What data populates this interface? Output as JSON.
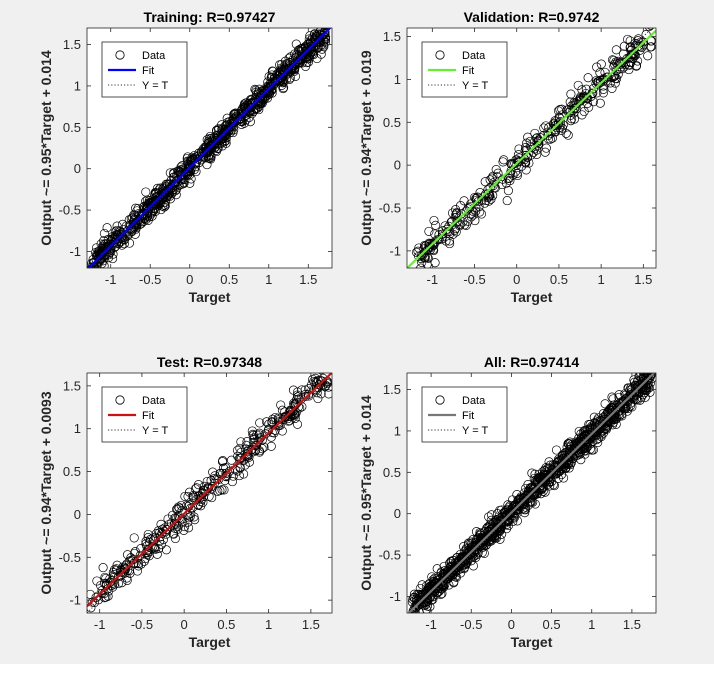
{
  "figure": {
    "background": "#f0f0f0",
    "axes_background": "#ffffff",
    "marker_color": "#000000"
  },
  "chart_data": [
    {
      "type": "scatter",
      "title": "Training: R=0.97427",
      "xlabel": "Target",
      "ylabel": "Output ~= 0.95*Target + 0.014",
      "xlim": [
        -1.3,
        1.8
      ],
      "ylim": [
        -1.2,
        1.7
      ],
      "xticks": [
        -1,
        -0.5,
        0,
        0.5,
        1,
        1.5
      ],
      "xtick_labels": [
        "-1",
        "-0.5",
        "0",
        "0.5",
        "1",
        "1.5"
      ],
      "yticks": [
        -1,
        -0.5,
        0,
        0.5,
        1,
        1.5
      ],
      "ytick_labels": [
        "-1",
        "-0.5",
        "0",
        "0.5",
        "1",
        "1.5"
      ],
      "fit": {
        "slope": 0.95,
        "intercept": 0.014,
        "color": "#0000ff"
      },
      "identity_line": {
        "slope": 1,
        "intercept": 0,
        "style": "dotted"
      },
      "legend": {
        "position": "top-left",
        "entries": [
          "Data",
          "Fit",
          "Y = T"
        ]
      },
      "scatter": {
        "n_points": 900,
        "x_range": [
          -1.25,
          1.72
        ],
        "noise": 0.075,
        "seed": 11
      }
    },
    {
      "type": "scatter",
      "title": "Validation: R=0.9742",
      "xlabel": "Target",
      "ylabel": "Output ~= 0.94*Target + 0.019",
      "xlim": [
        -1.3,
        1.65
      ],
      "ylim": [
        -1.2,
        1.6
      ],
      "xticks": [
        -1,
        -0.5,
        0,
        0.5,
        1,
        1.5
      ],
      "xtick_labels": [
        "-1",
        "-0.5",
        "0",
        "0.5",
        "1",
        "1.5"
      ],
      "yticks": [
        -1,
        -0.5,
        0,
        0.5,
        1,
        1.5
      ],
      "ytick_labels": [
        "-1",
        "-0.5",
        "0",
        "0.5",
        "1",
        "1.5"
      ],
      "fit": {
        "slope": 0.94,
        "intercept": 0.019,
        "color": "#66ee33"
      },
      "identity_line": {
        "slope": 1,
        "intercept": 0,
        "style": "dotted"
      },
      "legend": {
        "position": "top-left",
        "entries": [
          "Data",
          "Fit",
          "Y = T"
        ]
      },
      "scatter": {
        "n_points": 380,
        "x_range": [
          -1.2,
          1.6
        ],
        "noise": 0.09,
        "seed": 23
      }
    },
    {
      "type": "scatter",
      "title": "Test: R=0.97348",
      "xlabel": "Target",
      "ylabel": "Output ~= 0.94*Target + 0.0093",
      "xlim": [
        -1.15,
        1.75
      ],
      "ylim": [
        -1.15,
        1.65
      ],
      "xticks": [
        -1,
        -0.5,
        0,
        0.5,
        1,
        1.5
      ],
      "xtick_labels": [
        "-1",
        "-0.5",
        "0",
        "0.5",
        "1",
        "1.5"
      ],
      "yticks": [
        -1,
        -0.5,
        0,
        0.5,
        1,
        1.5
      ],
      "ytick_labels": [
        "-1",
        "-0.5",
        "0",
        "0.5",
        "1",
        "1.5"
      ],
      "fit": {
        "slope": 0.94,
        "intercept": 0.0093,
        "color": "#cc1111"
      },
      "identity_line": {
        "slope": 1,
        "intercept": 0,
        "style": "dotted"
      },
      "legend": {
        "position": "top-left",
        "entries": [
          "Data",
          "Fit",
          "Y = T"
        ]
      },
      "scatter": {
        "n_points": 380,
        "x_range": [
          -1.12,
          1.72
        ],
        "noise": 0.09,
        "seed": 37
      }
    },
    {
      "type": "scatter",
      "title": "All: R=0.97414",
      "xlabel": "Target",
      "ylabel": "Output ~= 0.95*Target + 0.014",
      "xlim": [
        -1.3,
        1.8
      ],
      "ylim": [
        -1.2,
        1.7
      ],
      "xticks": [
        -1,
        -0.5,
        0,
        0.5,
        1,
        1.5
      ],
      "xtick_labels": [
        "-1",
        "-0.5",
        "0",
        "0.5",
        "1",
        "1.5"
      ],
      "yticks": [
        -1,
        -0.5,
        0,
        0.5,
        1,
        1.5
      ],
      "ytick_labels": [
        "-1",
        "-0.5",
        "0",
        "0.5",
        "1",
        "1.5"
      ],
      "fit": {
        "slope": 0.95,
        "intercept": 0.014,
        "color": "#777777"
      },
      "identity_line": {
        "slope": 1,
        "intercept": 0,
        "style": "dotted"
      },
      "legend": {
        "position": "top-left",
        "entries": [
          "Data",
          "Fit",
          "Y = T"
        ]
      },
      "scatter": {
        "n_points": 1100,
        "x_range": [
          -1.25,
          1.75
        ],
        "noise": 0.075,
        "seed": 53
      }
    }
  ]
}
